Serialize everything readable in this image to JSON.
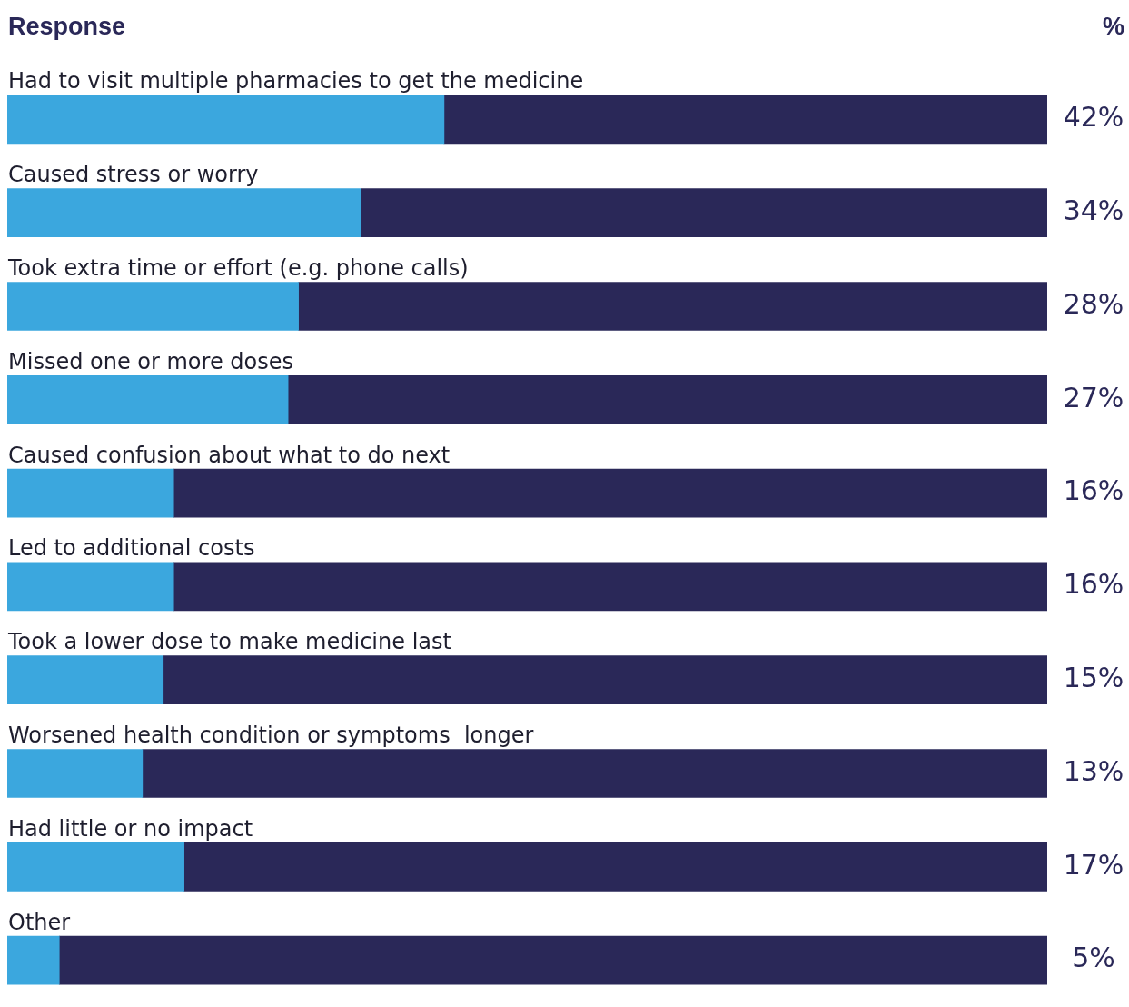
{
  "chart_data": {
    "type": "bar",
    "orientation": "horizontal",
    "stacked": true,
    "ylabel": "Response",
    "xlabel": "%",
    "categories": [
      "Had to visit multiple pharmacies to get the medicine",
      "Caused stress or worry",
      "Took extra time or effort (e.g. phone calls)",
      "Missed one or more doses",
      "Caused confusion about what to do next",
      "Led to additional costs",
      "Took a lower dose to make medicine last",
      "Worsened health condition or symptoms  longer",
      "Had little or no impact",
      "Other"
    ],
    "xlim": [
      0,
      100
    ],
    "legend": false,
    "series": [
      {
        "color": "#3ba7de",
        "values": [
          42,
          34,
          28,
          27,
          16,
          16,
          15,
          13,
          17,
          5
        ],
        "value_labels": [
          "42%",
          "34%",
          "28%",
          "27%",
          "16%",
          "16%",
          "15%",
          "13%",
          "17%",
          "5%"
        ]
      },
      {
        "color": "#2a2858",
        "values": [
          58,
          66,
          72,
          73,
          84,
          84,
          85,
          87,
          83,
          95
        ]
      }
    ]
  }
}
